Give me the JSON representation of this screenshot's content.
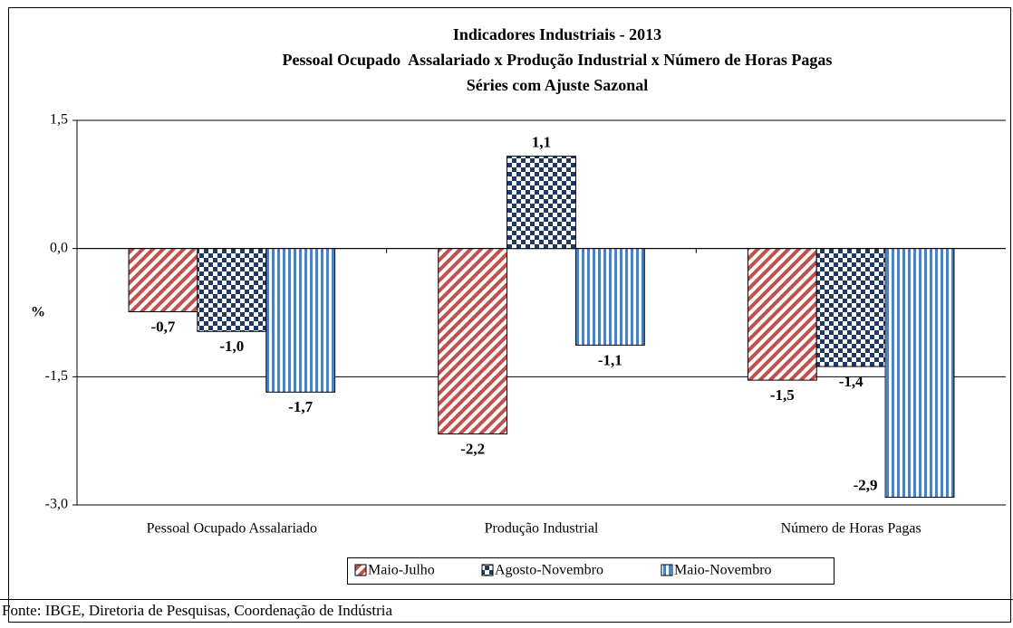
{
  "chart_data": {
    "type": "bar",
    "title": "Indicadores Industriais - 2013",
    "subtitle": [
      "Pessoal Ocupado  Assalariado x Produção Industrial x Número de Horas Pagas",
      "Séries com Ajuste Sazonal"
    ],
    "y_label": "%",
    "categories": [
      "Pessoal Ocupado Assalariado",
      "Produção Industrial",
      "Número de Horas Pagas"
    ],
    "series": [
      {
        "name": "Maio-Julho",
        "color": "#c0504d",
        "pattern": "diagonal",
        "values": [
          -0.74,
          -2.17,
          -1.54
        ],
        "value_labels": [
          "-0,7",
          "-2,2",
          "-1,5"
        ]
      },
      {
        "name": "Agosto-Novembro",
        "color": "#1f3864",
        "pattern": "checker",
        "values": [
          -0.97,
          1.08,
          -1.38
        ],
        "value_labels": [
          "-1,0",
          "1,1",
          "-1,4"
        ]
      },
      {
        "name": "Maio-Novembro",
        "color": "#4f81bd",
        "pattern": "vertical",
        "values": [
          -1.68,
          -1.13,
          -2.91
        ],
        "value_labels": [
          "-1,7",
          "-1,1",
          "-2,9"
        ]
      }
    ],
    "ylim": [
      -3,
      1.5
    ],
    "yticks": [
      {
        "value": -3,
        "label": "-3,0"
      },
      {
        "value": -1.5,
        "label": "-1,5"
      },
      {
        "value": 0,
        "label": "0,0"
      },
      {
        "value": 1.5,
        "label": "1,5"
      }
    ],
    "grid": true,
    "legend": "bottom",
    "source": "Fonte: IBGE, Diretoria de Pesquisas, Coordenação de Indústria"
  }
}
